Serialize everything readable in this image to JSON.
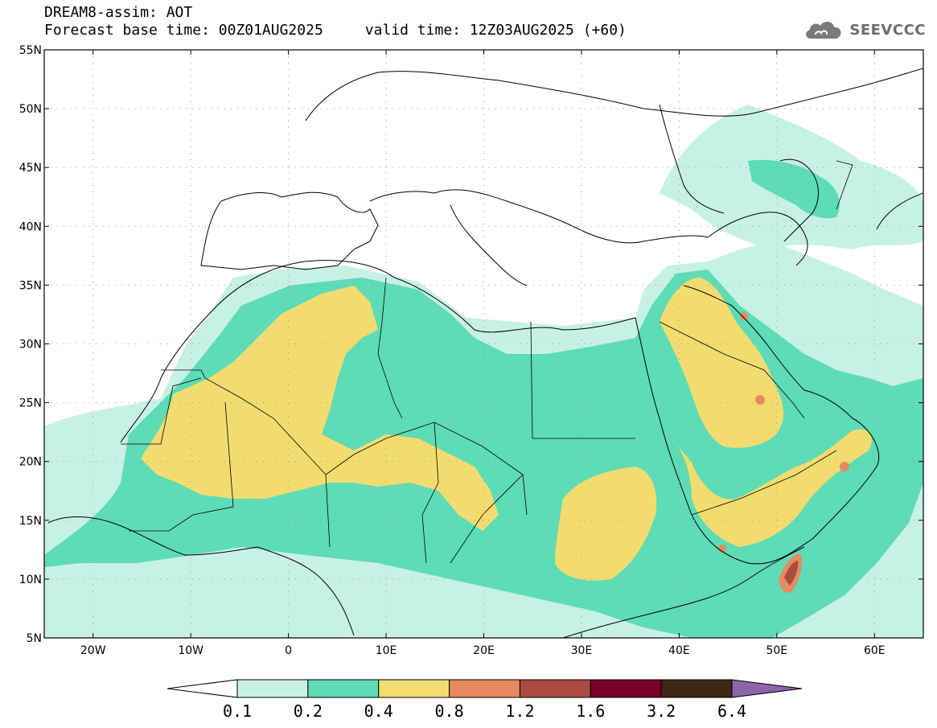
{
  "header": {
    "title": "DREAM8-assim: AOT",
    "base_time": "Forecast base time: 00Z01AUG2025",
    "valid_time": "valid time: 12Z03AUG2025 (+60)"
  },
  "logo": {
    "text": "SEEVCCC",
    "icon": "cloud-icon"
  },
  "map": {
    "lat_labels": [
      "5N",
      "10N",
      "15N",
      "20N",
      "25N",
      "30N",
      "35N",
      "40N",
      "45N",
      "50N",
      "55N"
    ],
    "lon_labels": [
      "20W",
      "10W",
      "0",
      "10E",
      "20E",
      "30E",
      "40E",
      "50E",
      "60E"
    ],
    "lon_range": [
      -25,
      65
    ],
    "lat_range": [
      5,
      55
    ]
  },
  "colorbar": {
    "levels": [
      "0.1",
      "0.2",
      "0.4",
      "0.8",
      "1.2",
      "1.6",
      "3.2",
      "6.4"
    ],
    "colors": [
      "#ffffff",
      "#c8f1e6",
      "#5ddcb5",
      "#f2dc70",
      "#e68a60",
      "#aa4a40",
      "#7a0028",
      "#3c2814",
      "#8c64aa"
    ]
  }
}
